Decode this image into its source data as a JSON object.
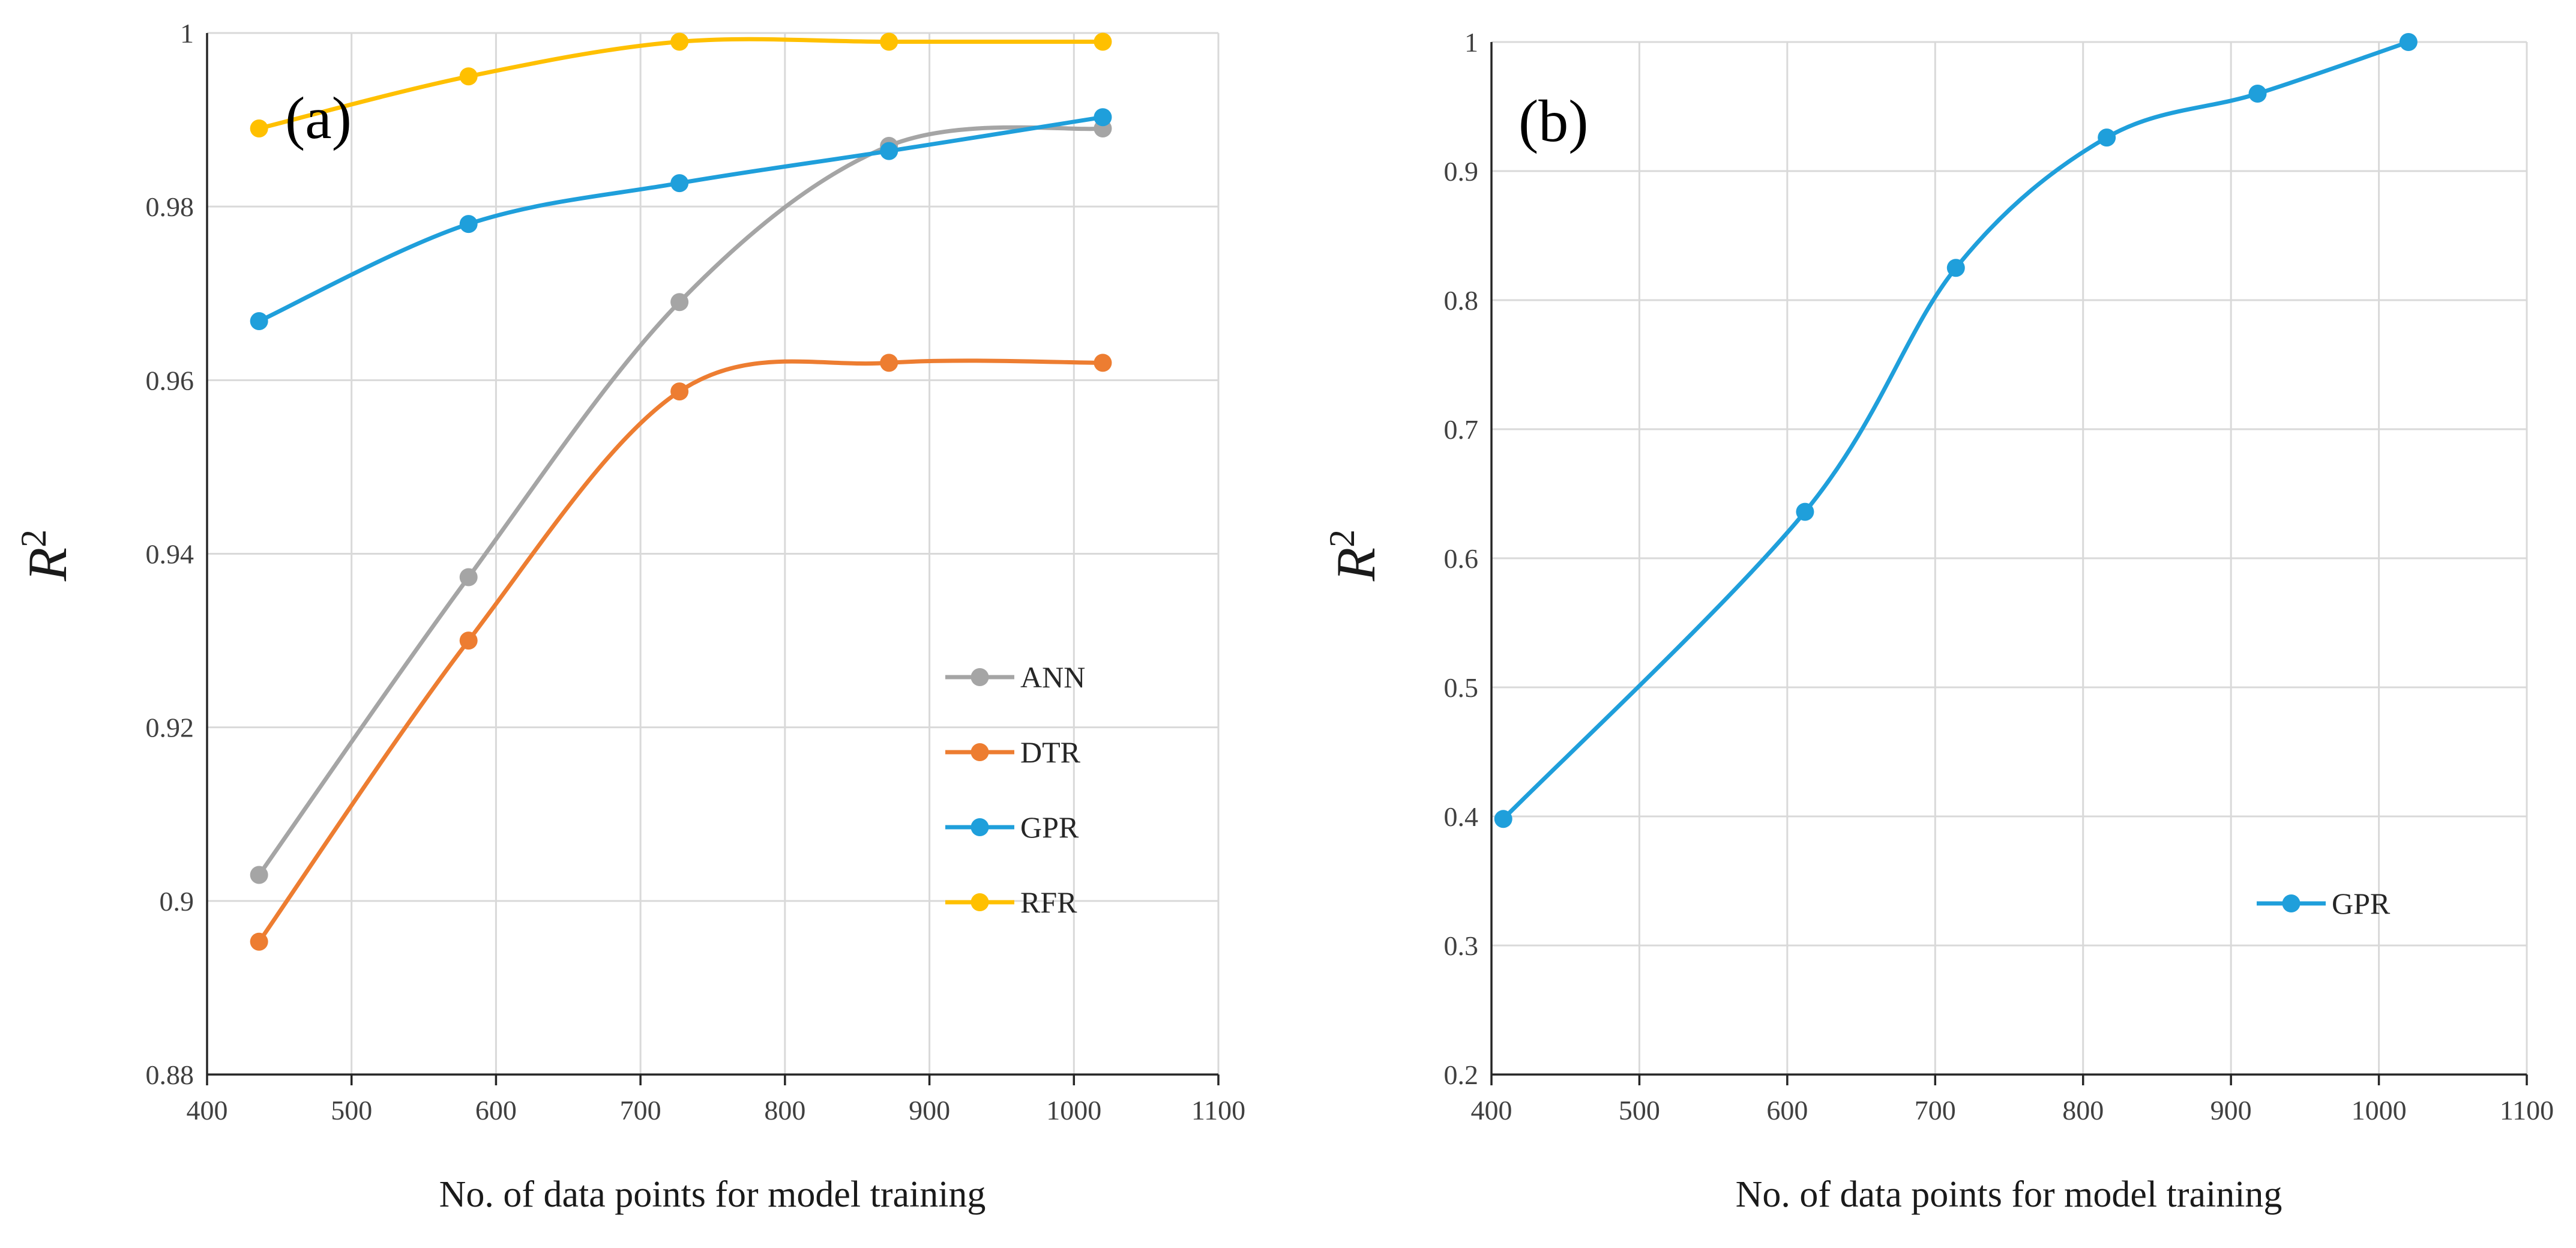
{
  "chart_data": [
    {
      "type": "line",
      "panel_label": "(a)",
      "xlabel": "No. of data points for model training",
      "ylabel": "R",
      "ylabel_superscript": "2",
      "xlim": [
        400,
        1100
      ],
      "ylim": [
        0.88,
        1.0
      ],
      "xticks": [
        "400",
        "500",
        "600",
        "700",
        "800",
        "900",
        "1000",
        "1100"
      ],
      "yticks": [
        "0.88",
        "0.9",
        "0.92",
        "0.94",
        "0.96",
        "0.98",
        "1"
      ],
      "grid": true,
      "legend_position": "lower-right",
      "series": [
        {
          "name": "ANN",
          "color": "#a5a5a5",
          "x": [
            436,
            581,
            727,
            872,
            1020
          ],
          "y": [
            0.903,
            0.9373,
            0.969,
            0.987,
            0.989
          ]
        },
        {
          "name": "DTR",
          "color": "#ed7d31",
          "x": [
            436,
            581,
            727,
            872,
            1020
          ],
          "y": [
            0.8953,
            0.93,
            0.9587,
            0.962,
            0.962
          ]
        },
        {
          "name": "GPR",
          "color": "#1f9fdb",
          "x": [
            436,
            581,
            727,
            872,
            1020
          ],
          "y": [
            0.9668,
            0.978,
            0.9827,
            0.9864,
            0.9903
          ]
        },
        {
          "name": "RFR",
          "color": "#ffc000",
          "x": [
            436,
            581,
            727,
            872,
            1020
          ],
          "y": [
            0.989,
            0.995,
            0.999,
            0.999,
            0.999
          ]
        }
      ]
    },
    {
      "type": "line",
      "panel_label": "(b)",
      "xlabel": "No. of data points for model training",
      "ylabel": "R",
      "ylabel_superscript": "2",
      "xlim": [
        400,
        1100
      ],
      "ylim": [
        0.2,
        1.0
      ],
      "xticks": [
        "400",
        "500",
        "600",
        "700",
        "800",
        "900",
        "1000",
        "1100"
      ],
      "yticks": [
        "0.2",
        "0.3",
        "0.4",
        "0.5",
        "0.6",
        "0.7",
        "0.8",
        "0.9",
        "1"
      ],
      "grid": true,
      "legend_position": "lower-right",
      "series": [
        {
          "name": "GPR",
          "color": "#1f9fdb",
          "x": [
            408,
            612,
            714,
            816,
            918,
            1020
          ],
          "y": [
            0.398,
            0.636,
            0.825,
            0.926,
            0.96,
            1.0
          ]
        }
      ]
    }
  ]
}
